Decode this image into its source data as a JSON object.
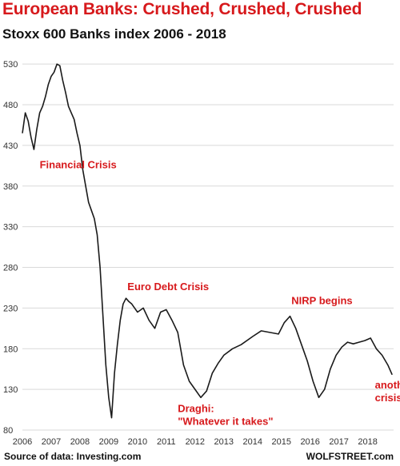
{
  "title": "European Banks: Crushed, Crushed, Crushed",
  "subtitle": "Stoxx 600 Banks index 2006 - 2018",
  "source": "Source of data: Investing.com",
  "brand": "WOLFSTREET.com",
  "colors": {
    "title": "#d7191c",
    "annotation": "#d7191c",
    "series": "#1a1a1a",
    "grid": "#d9d9d9"
  },
  "chart_data": {
    "type": "line",
    "title": "Stoxx 600 Banks index 2006 - 2018",
    "xlabel": "",
    "ylabel": "",
    "xlim": [
      2006,
      2018.9
    ],
    "ylim": [
      80,
      540
    ],
    "grid": true,
    "yticks": [
      80,
      130,
      180,
      230,
      280,
      330,
      380,
      430,
      480,
      530
    ],
    "xticks": [
      "2006",
      "2007",
      "2008",
      "2009",
      "2010",
      "2011",
      "2012",
      "2013",
      "2014",
      "2015",
      "2016",
      "2017",
      "2018"
    ],
    "series": [
      {
        "name": "",
        "x": [
          2006.0,
          2006.1,
          2006.2,
          2006.3,
          2006.4,
          2006.5,
          2006.6,
          2006.7,
          2006.8,
          2006.9,
          2007.0,
          2007.1,
          2007.2,
          2007.3,
          2007.4,
          2007.5,
          2007.6,
          2007.7,
          2007.8,
          2007.9,
          2008.0,
          2008.1,
          2008.2,
          2008.3,
          2008.4,
          2008.5,
          2008.6,
          2008.7,
          2008.8,
          2008.9,
          2009.0,
          2009.1,
          2009.2,
          2009.3,
          2009.4,
          2009.5,
          2009.6,
          2009.7,
          2009.8,
          2009.9,
          2010.0,
          2010.2,
          2010.4,
          2010.6,
          2010.8,
          2011.0,
          2011.2,
          2011.4,
          2011.6,
          2011.8,
          2012.0,
          2012.2,
          2012.4,
          2012.6,
          2012.8,
          2013.0,
          2013.3,
          2013.6,
          2014.0,
          2014.3,
          2014.6,
          2014.9,
          2015.1,
          2015.3,
          2015.5,
          2015.7,
          2015.9,
          2016.1,
          2016.3,
          2016.5,
          2016.7,
          2016.9,
          2017.1,
          2017.3,
          2017.5,
          2017.7,
          2017.9,
          2018.1,
          2018.3,
          2018.5,
          2018.7,
          2018.85
        ],
        "y": [
          445,
          470,
          460,
          440,
          425,
          450,
          470,
          478,
          490,
          505,
          515,
          520,
          530,
          528,
          510,
          495,
          478,
          470,
          462,
          445,
          430,
          400,
          380,
          360,
          350,
          340,
          320,
          280,
          220,
          160,
          120,
          95,
          150,
          185,
          215,
          235,
          242,
          238,
          235,
          230,
          225,
          230,
          215,
          205,
          225,
          228,
          215,
          200,
          160,
          140,
          130,
          120,
          128,
          150,
          162,
          172,
          180,
          185,
          195,
          202,
          200,
          198,
          212,
          220,
          205,
          185,
          165,
          140,
          120,
          130,
          155,
          172,
          182,
          188,
          186,
          188,
          190,
          193,
          180,
          172,
          160,
          148
        ]
      }
    ],
    "annotations": [
      {
        "lines": [
          "Financial Crisis"
        ],
        "x": 2006.6,
        "y": 402
      },
      {
        "lines": [
          "Euro Debt Crisis"
        ],
        "x": 2009.65,
        "y": 252
      },
      {
        "lines": [
          "NIRP begins"
        ],
        "x": 2015.35,
        "y": 235
      },
      {
        "lines": [
          "Draghi:",
          "\"Whatever it takes\""
        ],
        "x": 2011.4,
        "y": 102
      },
      {
        "lines": [
          "another",
          "crisis"
        ],
        "x": 2018.25,
        "y": 131
      }
    ]
  }
}
